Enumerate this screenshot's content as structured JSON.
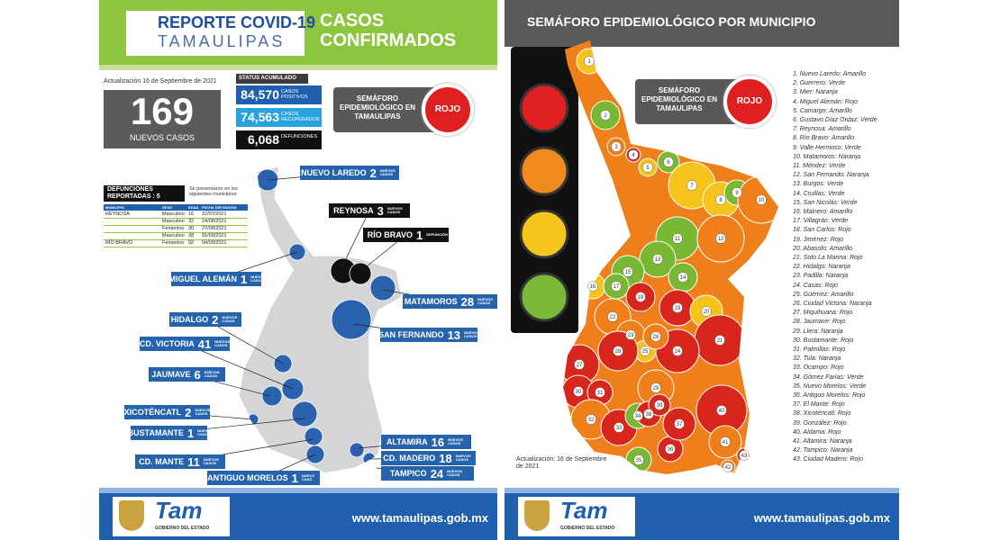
{
  "left": {
    "header": {
      "title": "REPORTE COVID-19",
      "subtitle": "TAMAULIPAS",
      "heading": "CASOS CONFIRMADOS"
    },
    "update": "Actualización 16 de Septiembre de 2021",
    "new_cases": {
      "value": 169,
      "label": "NUEVOS CASOS"
    },
    "status": {
      "title": "STATUS ACUMULADO",
      "items": [
        {
          "value": "84,570",
          "label": "CASOS POSITIVOS"
        },
        {
          "value": "74,563",
          "label": "CASOS RECUPERADOS"
        },
        {
          "value": "6,068",
          "label": "DEFUNCIONES"
        }
      ]
    },
    "semaforo": {
      "label": "SEMÁFORO EPIDEMIOLÓGICO EN TAMAULIPAS",
      "status": "ROJO"
    },
    "deaths": {
      "title": "DEFUNCIONES REPORTADAS : 5",
      "note": "Se presentaron en los siguientes municipios:",
      "columns": [
        "MUNICIPIO",
        "SEXO",
        "EDAD",
        "FECHA DEFUNCIÓN"
      ],
      "rows": [
        [
          "REYNOSA",
          "Masculino",
          "16",
          "22/07/2021"
        ],
        [
          null,
          "Masculino",
          "32",
          "24/08/2021"
        ],
        [
          null,
          "Femenino",
          "30",
          "27/08/2021"
        ],
        [
          null,
          "Masculino",
          "38",
          "01/09/2021"
        ],
        [
          "RÍO BRAVO",
          "Femenino",
          "92",
          "04/09/2021"
        ]
      ]
    },
    "map_labels": [
      {
        "name": "NUEVO LAREDO",
        "count": 2,
        "unit": "NUEVOS CASOS"
      },
      {
        "name": "REYNOSA",
        "count": 3,
        "unit": "NUEVOS CASOS"
      },
      {
        "name": "RÍO BRAVO",
        "count": 1,
        "unit": "DEFUNCIÓN"
      },
      {
        "name": "MIGUEL ALEMÁN",
        "count": 1,
        "unit": "NUEVO CASO"
      },
      {
        "name": "MATAMOROS",
        "count": 28,
        "unit": "NUEVOS CASOS"
      },
      {
        "name": "HIDALGO",
        "count": 2,
        "unit": "NUEVOS CASOS"
      },
      {
        "name": "SAN FERNANDO",
        "count": 13,
        "unit": "NUEVOS CASOS"
      },
      {
        "name": "CD. VICTORIA",
        "count": 41,
        "unit": "NUEVOS CASOS"
      },
      {
        "name": "JAUMAVE",
        "count": 6,
        "unit": "NUEVOS CASOS"
      },
      {
        "name": "XICOTÉNCATL",
        "count": 2,
        "unit": "NUEVOS CASOS"
      },
      {
        "name": "BUSTAMANTE",
        "count": 1,
        "unit": "NUEVO CASO"
      },
      {
        "name": "ALTAMIRA",
        "count": 16,
        "unit": "NUEVOS CASOS"
      },
      {
        "name": "CD. MADERO",
        "count": 18,
        "unit": "NUEVOS CASOS"
      },
      {
        "name": "CD. MANTE",
        "count": 11,
        "unit": "NUEVOS CASOS"
      },
      {
        "name": "TAMPICO",
        "count": 24,
        "unit": "NUEVOS CASOS"
      },
      {
        "name": "ANTIGUO MORELOS",
        "count": 1,
        "unit": "NUEVO CASO"
      }
    ],
    "footer": {
      "url": "www.tamaulipas.gob.mx",
      "logo": "Tam",
      "logo_sub": "GOBIERNO DEL ESTADO"
    }
  },
  "right": {
    "title": "SEMÁFORO EPIDEMIOLÓGICO POR MUNICIPIO",
    "semaforo": {
      "label": "SEMÁFORO EPIDEMIOLÓGICO EN TAMAULIPAS",
      "status": "ROJO"
    },
    "update": "Actualización: 16 de Septiembre de 2021",
    "status_colors": {
      "Rojo": "#d9261c",
      "Naranja": "#ee7f1b",
      "Amarillo": "#f6c31a",
      "Verde": "#79b833"
    },
    "municipalities": [
      {
        "n": 1,
        "label": "1. Nuevo Laredo:",
        "status": "Amarillo"
      },
      {
        "n": 2,
        "label": "2. Guerrero:",
        "status": "Verde"
      },
      {
        "n": 3,
        "label": "3. Mier:",
        "status": "Naranja"
      },
      {
        "n": 4,
        "label": "4. Miguel Alemán:",
        "status": "Rojo"
      },
      {
        "n": 5,
        "label": "5. Camargo:",
        "status": "Amarillo"
      },
      {
        "n": 6,
        "label": "6. Gustavo Díaz Ordaz:",
        "status": "Verde"
      },
      {
        "n": 7,
        "label": "7. Reynosa:",
        "status": "Amarillo"
      },
      {
        "n": 8,
        "label": "8. Río Bravo:",
        "status": "Amarillo"
      },
      {
        "n": 9,
        "label": "9. Valle Hermoso:",
        "status": "Verde"
      },
      {
        "n": 10,
        "label": "10. Matamoros:",
        "status": "Naranja"
      },
      {
        "n": 11,
        "label": "11. Méndez:",
        "status": "Verde"
      },
      {
        "n": 12,
        "label": "12. San Fernando:",
        "status": "Naranja"
      },
      {
        "n": 13,
        "label": "13. Burgos:",
        "status": "Verde"
      },
      {
        "n": 14,
        "label": "14. Cruillas:",
        "status": "Verde"
      },
      {
        "n": 15,
        "label": "15. San Nicolás:",
        "status": "Verde"
      },
      {
        "n": 16,
        "label": "16. Mainero:",
        "status": "Amarillo"
      },
      {
        "n": 17,
        "label": "17. Villagrán:",
        "status": "Verde"
      },
      {
        "n": 18,
        "label": "18. San Carlos:",
        "status": "Rojo"
      },
      {
        "n": 19,
        "label": "19. Jiménez:",
        "status": "Rojo"
      },
      {
        "n": 20,
        "label": "20. Abasolo:",
        "status": "Amarillo"
      },
      {
        "n": 21,
        "label": "21. Soto La Marina:",
        "status": "Rojo"
      },
      {
        "n": 22,
        "label": "22. Hidalgo:",
        "status": "Naranja"
      },
      {
        "n": 23,
        "label": "23. Padilla:",
        "status": "Naranja"
      },
      {
        "n": 24,
        "label": "24. Casas:",
        "status": "Rojo"
      },
      {
        "n": 25,
        "label": "25. Güémez:",
        "status": "Amarillo"
      },
      {
        "n": 26,
        "label": "26. Ciudad Victoria:",
        "status": "Naranja"
      },
      {
        "n": 27,
        "label": "27. Miquihuana:",
        "status": "Rojo"
      },
      {
        "n": 28,
        "label": "28. Jaumave:",
        "status": "Rojo"
      },
      {
        "n": 29,
        "label": "29. Llera:",
        "status": "Naranja"
      },
      {
        "n": 30,
        "label": "30. Bustamante:",
        "status": "Rojo"
      },
      {
        "n": 31,
        "label": "31. Palmillas:",
        "status": "Rojo"
      },
      {
        "n": 32,
        "label": "32. Tula:",
        "status": "Naranja"
      },
      {
        "n": 33,
        "label": "33. Ocampo:",
        "status": "Rojo"
      },
      {
        "n": 34,
        "label": "34. Gómez Farías:",
        "status": "Verde"
      },
      {
        "n": 35,
        "label": "35. Nuevo Morelos:",
        "status": "Verde"
      },
      {
        "n": 36,
        "label": "36. Antiguo Morelos:",
        "status": "Rojo"
      },
      {
        "n": 37,
        "label": "37. El Mante:",
        "status": "Rojo"
      },
      {
        "n": 38,
        "label": "38. Xicoténcatl:",
        "status": "Rojo"
      },
      {
        "n": 39,
        "label": "39. González:",
        "status": "Rojo"
      },
      {
        "n": 40,
        "label": "40. Aldama:",
        "status": "Rojo"
      },
      {
        "n": 41,
        "label": "41. Altamira:",
        "status": "Naranja"
      },
      {
        "n": 42,
        "label": "42. Tampico:",
        "status": "Naranja"
      },
      {
        "n": 43,
        "label": "43. Ciudad Madero:",
        "status": "Rojo"
      }
    ],
    "footer": {
      "url": "www.tamaulipas.gob.mx",
      "logo": "Tam",
      "logo_sub": "GOBIERNO DEL ESTADO"
    }
  }
}
